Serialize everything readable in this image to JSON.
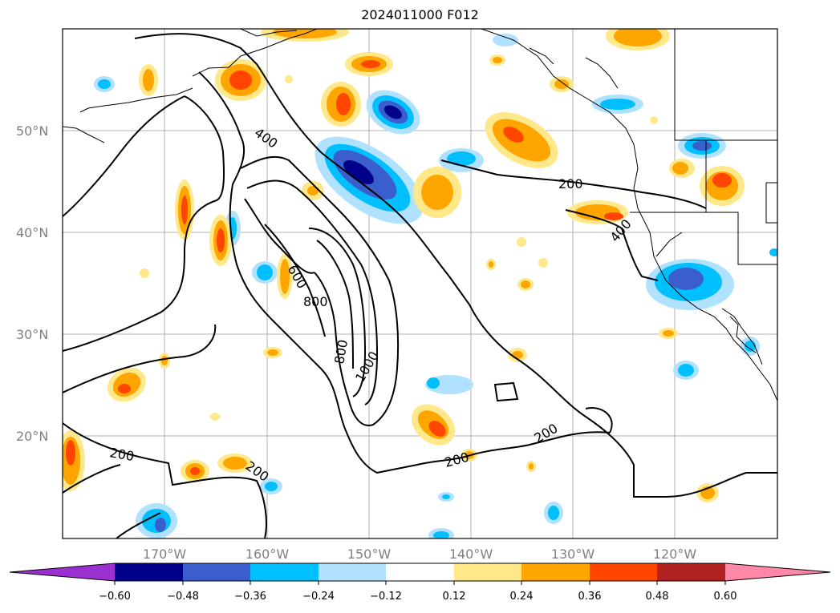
{
  "title": "2024011000 F012",
  "map": {
    "lat_ticks": [
      "20°N",
      "30°N",
      "40°N",
      "50°N"
    ],
    "lon_ticks": [
      "170°W",
      "160°W",
      "150°W",
      "140°W",
      "130°W",
      "120°W"
    ],
    "contour_labels": [
      "400",
      "200",
      "600",
      "800",
      "800",
      "1000",
      "200",
      "200",
      "200",
      "200",
      "400"
    ]
  },
  "colorbar": {
    "labels": [
      "−0.60",
      "−0.48",
      "−0.36",
      "−0.24",
      "−0.12",
      "0.12",
      "0.24",
      "0.36",
      "0.48",
      "0.60"
    ],
    "colors": {
      "under": "#9b30d0",
      "bins": [
        "#00008b",
        "#3a5fcd",
        "#00bfff",
        "#b0e2ff",
        "#ffffff",
        "#ffe88a",
        "#ffa500",
        "#ff4500",
        "#b22222",
        "#ff88a8"
      ],
      "over": "#ff88a8"
    }
  }
}
